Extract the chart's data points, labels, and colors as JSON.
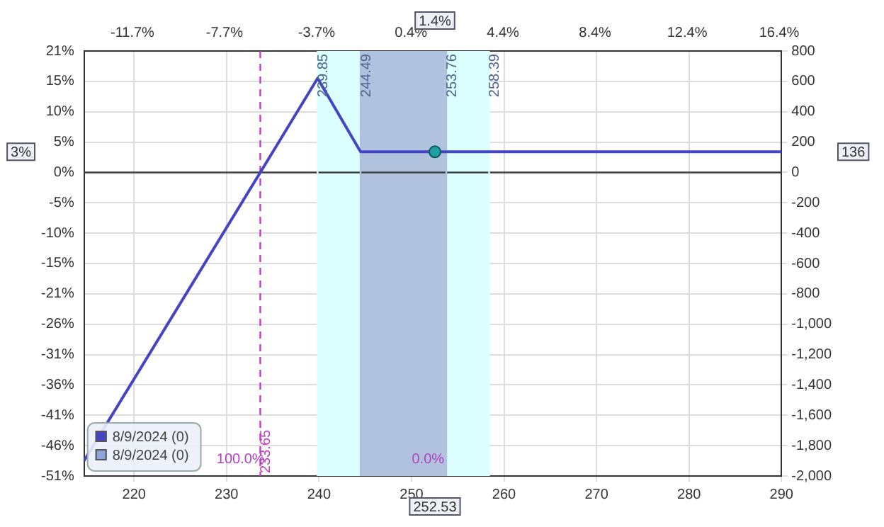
{
  "chart_data": {
    "type": "line",
    "series": [
      {
        "name": "8/9/2024 (0)",
        "color": "#4444c4",
        "axis": "y2",
        "x": [
          214.6,
          233.65,
          239.85,
          244.49,
          290
        ],
        "values": [
          -1900,
          0,
          620,
          136,
          136
        ]
      },
      {
        "name": "8/9/2024 (0)",
        "color": "#8fa6dc",
        "axis": "y2"
      },
      {
        "type": "scatter",
        "color": "#20a0a0",
        "axis": "y2",
        "marker": "circle",
        "x": [
          252.53
        ],
        "values": [
          136
        ]
      }
    ],
    "xlim": [
      214.6,
      290
    ],
    "xticks": [
      220,
      230,
      240,
      250,
      260,
      270,
      280,
      290
    ],
    "x2lim": [
      -13.8,
      16.5
    ],
    "x2ticks": [
      {
        "value": -11.7,
        "label": "-11.7%"
      },
      {
        "value": -7.7,
        "label": "-7.7%"
      },
      {
        "value": -3.7,
        "label": "-3.7%"
      },
      {
        "value": 0.4,
        "label": "0.4%"
      },
      {
        "value": 4.4,
        "label": "4.4%"
      },
      {
        "value": 8.4,
        "label": "8.4%"
      },
      {
        "value": 12.4,
        "label": "12.4%"
      },
      {
        "value": 16.4,
        "label": "16.4%"
      }
    ],
    "ylim": [
      -51.28,
      20.51
    ],
    "yticks": [
      {
        "value": 20.51,
        "label": "21%"
      },
      {
        "value": 15.38,
        "label": "15%"
      },
      {
        "value": 10.26,
        "label": "10%"
      },
      {
        "value": 5.13,
        "label": "5%"
      },
      {
        "value": 0,
        "label": "0%"
      },
      {
        "value": -5.13,
        "label": "-5%"
      },
      {
        "value": -10.26,
        "label": "-10%"
      },
      {
        "value": -15.38,
        "label": "-15%"
      },
      {
        "value": -20.51,
        "label": "-21%"
      },
      {
        "value": -25.64,
        "label": "-26%"
      },
      {
        "value": -30.77,
        "label": "-31%"
      },
      {
        "value": -35.9,
        "label": "-36%"
      },
      {
        "value": -41.03,
        "label": "-41%"
      },
      {
        "value": -46.15,
        "label": "-46%"
      },
      {
        "value": -51.28,
        "label": "-51%"
      }
    ],
    "y2lim": [
      -2000,
      800
    ],
    "y2ticks": [
      800,
      600,
      400,
      200,
      0,
      -200,
      -400,
      -600,
      -800,
      {
        "value": -1000,
        "label": "-1,000"
      },
      {
        "value": -1200,
        "label": "-1,200"
      },
      {
        "value": -1400,
        "label": "-1,400"
      },
      {
        "value": -1600,
        "label": "-1,600"
      },
      {
        "value": -1800,
        "label": "-1,800"
      },
      {
        "value": -2000,
        "label": "-2,000"
      }
    ],
    "bands": [
      {
        "axis": "x",
        "from": 239.85,
        "to": 258.39,
        "color": "#dcffff"
      },
      {
        "axis": "x",
        "from": 244.49,
        "to": 253.76,
        "color": "#b0c2de"
      }
    ],
    "ref_lines": [
      {
        "axis": "x",
        "value": 233.65,
        "label": "233.65",
        "color": "#c040c0",
        "line_style": "dashed"
      },
      {
        "axis": "y2",
        "value": 0,
        "color": "#404040"
      },
      {
        "axis": "x",
        "value": 239.85,
        "label": "239.85",
        "color": "#dcffff"
      },
      {
        "axis": "x",
        "value": 244.49,
        "label": "244.49",
        "color": "#b0c2de"
      },
      {
        "axis": "x",
        "value": 253.76,
        "label": "253.76",
        "color": "#b0c2de"
      },
      {
        "axis": "x",
        "value": 258.39,
        "label": "258.39",
        "color": "#dcffff"
      }
    ],
    "annotations": [
      "100.0%",
      "0.0%",
      "252.53",
      "1.4%",
      "3%",
      "136"
    ],
    "grid": true,
    "legend": "bottom left",
    "line_style": "solid"
  }
}
